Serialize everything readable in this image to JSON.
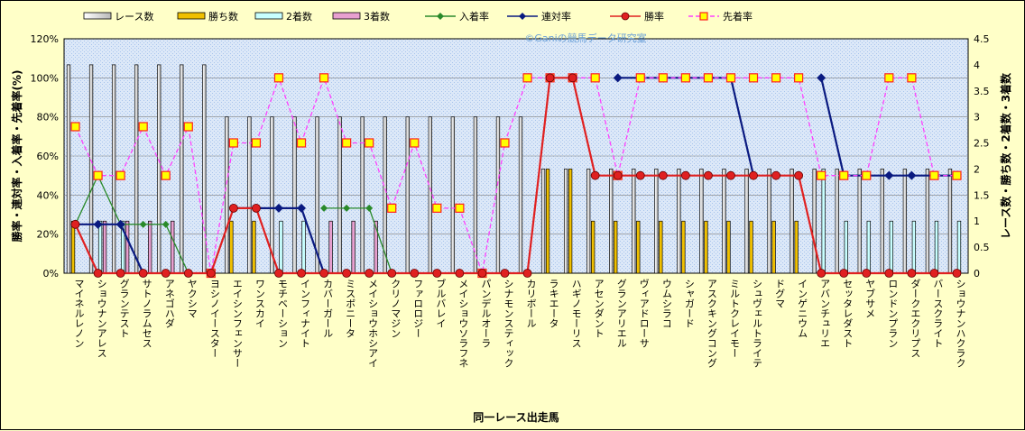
{
  "chart_data": {
    "type": "bar",
    "xlabel": "同一レース出走馬",
    "ylabel_left": "勝率・連対率・入着率・先着率(%)",
    "ylabel_right": "レース数・勝ち数・2着数・3着数",
    "watermark": "©Ganiの競馬データ研究室",
    "left_axis": {
      "min": 0,
      "max": 120,
      "step": 20,
      "suffix": "%"
    },
    "right_axis": {
      "min": 0,
      "max": 4.5,
      "step": 0.5
    },
    "grid": true,
    "legend_position": "top",
    "categories": [
      "マイネルレノン",
      "ショウナンアレス",
      "グランテスト",
      "サトノラムセス",
      "アネゴハダ",
      "ヤクシマ",
      "ヨシノイースター",
      "エイシンフェンサー",
      "ワンスカイ",
      "モチベーション",
      "インフィナイト",
      "カバーガール",
      "ミスボニータ",
      "メイショウホシアイ",
      "クリノマジン",
      "ファロロジー",
      "ブルバレイ",
      "メイショウソラフネ",
      "パンデルオーラ",
      "シナモンスティック",
      "カリボール",
      "ラキエータ",
      "ハギノモーリス",
      "アセンダント",
      "グランアリエル",
      "ヴィアドローサ",
      "ウムシラコ",
      "シャガード",
      "アスクキングコング",
      "ミルトクレイモー",
      "シュヴェルトライテ",
      "ドグマ",
      "インゲニウム",
      "アバンチュリエ",
      "セッタレダスト",
      "ヤブサメ",
      "ロンドンプラン",
      "ダークエクリプス",
      "バースクライト",
      "ショウナンハクラク"
    ],
    "series": [
      {
        "name": "レース数",
        "kind": "bar",
        "axis": "right",
        "color": "#ffffff",
        "values": [
          4,
          4,
          4,
          4,
          4,
          4,
          4,
          3,
          3,
          3,
          3,
          3,
          3,
          3,
          3,
          3,
          3,
          3,
          3,
          3,
          3,
          2,
          2,
          2,
          2,
          2,
          2,
          2,
          2,
          2,
          2,
          2,
          2,
          2,
          2,
          2,
          2,
          2,
          2,
          2
        ]
      },
      {
        "name": "勝ち数",
        "kind": "bar",
        "axis": "right",
        "color": "#f0c000",
        "values": [
          1,
          0,
          0,
          0,
          0,
          0,
          0,
          1,
          1,
          0,
          0,
          0,
          0,
          0,
          0,
          0,
          0,
          0,
          0,
          0,
          0,
          2,
          2,
          1,
          1,
          1,
          1,
          1,
          1,
          1,
          1,
          1,
          1,
          0,
          0,
          0,
          0,
          0,
          0,
          0
        ]
      },
      {
        "name": "2着数",
        "kind": "bar",
        "axis": "right",
        "color": "#c8ffff",
        "values": [
          0,
          1,
          1,
          0,
          0,
          0,
          0,
          0,
          0,
          1,
          1,
          0,
          0,
          0,
          0,
          0,
          0,
          0,
          0,
          0,
          0,
          0,
          0,
          0,
          0,
          0,
          0,
          0,
          0,
          0,
          0,
          0,
          0,
          2,
          1,
          1,
          1,
          1,
          1,
          1
        ]
      },
      {
        "name": "3着数",
        "kind": "bar",
        "axis": "right",
        "color": "#e8a0d0",
        "values": [
          0,
          1,
          1,
          1,
          1,
          0,
          0,
          0,
          0,
          0,
          0,
          1,
          1,
          1,
          0,
          0,
          0,
          0,
          0,
          0,
          0,
          0,
          0,
          0,
          0,
          0,
          0,
          0,
          0,
          0,
          0,
          0,
          0,
          0,
          0,
          0,
          0,
          0,
          0,
          0
        ]
      },
      {
        "name": "入着率",
        "kind": "line",
        "axis": "left",
        "color": "#2a8a2a",
        "marker": "diamond",
        "values": [
          25,
          50,
          25,
          25,
          25,
          0,
          null,
          null,
          null,
          null,
          null,
          33.3,
          33.3,
          33.3,
          0,
          null,
          null,
          null,
          null,
          null,
          null,
          null,
          null,
          null,
          null,
          null,
          null,
          null,
          null,
          null,
          null,
          null,
          null,
          null,
          null,
          null,
          null,
          null,
          null,
          null
        ]
      },
      {
        "name": "連対率",
        "kind": "line",
        "axis": "left",
        "color": "#0a1a80",
        "marker": "diamond",
        "values": [
          25,
          25,
          25,
          0,
          null,
          null,
          null,
          33.3,
          33.3,
          33.3,
          33.3,
          0,
          null,
          null,
          null,
          null,
          null,
          null,
          null,
          null,
          null,
          null,
          null,
          null,
          100,
          100,
          100,
          100,
          100,
          100,
          50,
          null,
          null,
          100,
          50,
          50,
          50,
          50,
          50,
          50
        ]
      },
      {
        "name": "勝率",
        "kind": "line",
        "axis": "left",
        "color": "#e02020",
        "marker": "circle",
        "values": [
          25,
          0,
          0,
          0,
          0,
          0,
          0,
          33.3,
          33.3,
          0,
          0,
          0,
          0,
          0,
          0,
          0,
          0,
          0,
          0,
          0,
          0,
          100,
          100,
          50,
          50,
          50,
          50,
          50,
          50,
          50,
          50,
          50,
          50,
          0,
          0,
          0,
          0,
          0,
          0,
          0
        ]
      },
      {
        "name": "先着率",
        "kind": "line",
        "axis": "left",
        "color": "#ff40ff",
        "marker": "square",
        "dash": true,
        "values": [
          75,
          50,
          50,
          75,
          50,
          75,
          0,
          66.7,
          66.7,
          100,
          66.7,
          100,
          66.7,
          66.7,
          33.3,
          66.7,
          33.3,
          33.3,
          0,
          66.7,
          100,
          100,
          100,
          100,
          50,
          100,
          100,
          100,
          100,
          100,
          100,
          100,
          100,
          50,
          50,
          50,
          100,
          100,
          50,
          50
        ]
      }
    ]
  }
}
